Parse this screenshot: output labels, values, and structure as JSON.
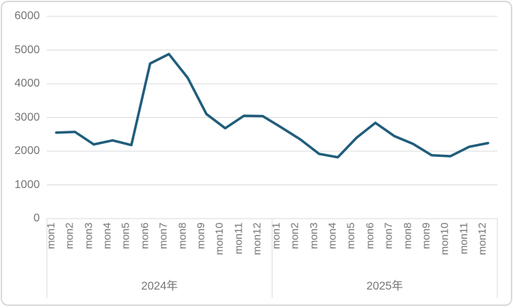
{
  "chart_data": {
    "type": "line",
    "title": "",
    "categories": [
      "mon1",
      "mon2",
      "mon3",
      "mon4",
      "mon5",
      "mon6",
      "mon7",
      "mon8",
      "mon9",
      "mon10",
      "mon11",
      "mon12"
    ],
    "groups": [
      {
        "label": "2024年",
        "values": [
          2550,
          2570,
          2200,
          2320,
          2180,
          4600,
          4880,
          4180,
          3100,
          2680,
          3050,
          3040
        ]
      },
      {
        "label": "2025年",
        "values": [
          2700,
          2350,
          1920,
          1820,
          2400,
          2840,
          2450,
          2220,
          1880,
          1850,
          2130,
          2240
        ]
      }
    ],
    "ylim": [
      0,
      6000
    ],
    "y_ticks": [
      0,
      1000,
      2000,
      3000,
      4000,
      5000,
      6000
    ],
    "grid": true,
    "legend_position": "none",
    "line_color": "#205D7B",
    "gridline_color": "#D9D9D9",
    "axis_color": "#D9D9D9",
    "label_color": "#757575"
  }
}
